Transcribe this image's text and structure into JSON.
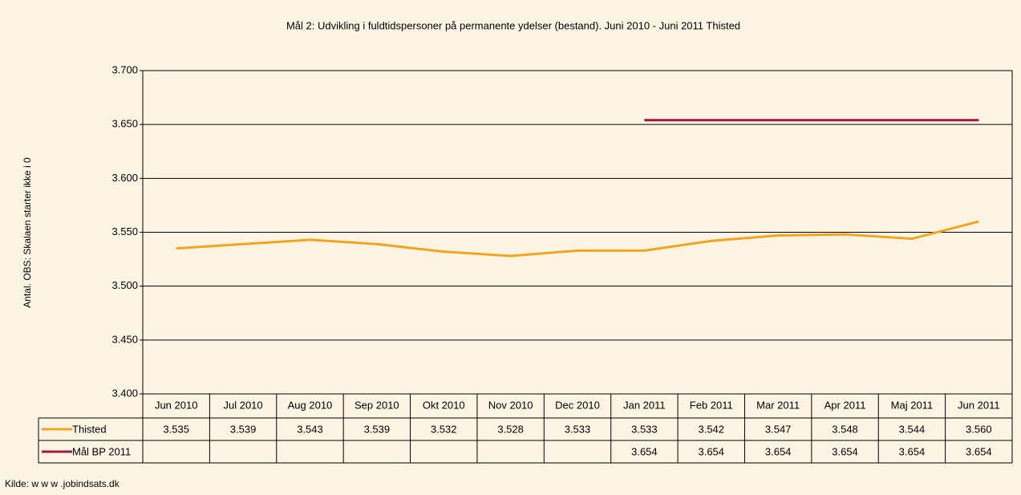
{
  "chart_data": {
    "type": "line",
    "title": "Mål 2: Udvikling i fuldtidspersoner på permanente ydelser (bestand). Juni 2010 - Juni 2011 Thisted",
    "y_label": "Antal. OBS: Skalaen starter ikke i 0",
    "source": "Kilde: w w w .jobindsats.dk",
    "categories": [
      "Jun 2010",
      "Jul 2010",
      "Aug 2010",
      "Sep 2010",
      "Okt 2010",
      "Nov 2010",
      "Dec 2010",
      "Jan 2011",
      "Feb 2011",
      "Mar 2011",
      "Apr 2011",
      "Maj 2011",
      "Jun 2011"
    ],
    "series": [
      {
        "name": "Thisted",
        "color": "#f7a41d",
        "values": [
          3535,
          3539,
          3543,
          3539,
          3532,
          3528,
          3533,
          3533,
          3542,
          3547,
          3548,
          3544,
          3560
        ],
        "value_labels": [
          "3.535",
          "3.539",
          "3.543",
          "3.539",
          "3.532",
          "3.528",
          "3.533",
          "3.533",
          "3.542",
          "3.547",
          "3.548",
          "3.544",
          "3.560"
        ]
      },
      {
        "name": "Mål BP 2011",
        "color": "#a3173e",
        "values": [
          null,
          null,
          null,
          null,
          null,
          null,
          null,
          3654,
          3654,
          3654,
          3654,
          3654,
          3654
        ],
        "value_labels": [
          null,
          null,
          null,
          null,
          null,
          null,
          null,
          "3.654",
          "3.654",
          "3.654",
          "3.654",
          "3.654",
          "3.654"
        ]
      }
    ],
    "ylim": [
      3400,
      3700
    ],
    "yticks": [
      {
        "value": 3400,
        "label": "3.400"
      },
      {
        "value": 3450,
        "label": "3.450"
      },
      {
        "value": 3500,
        "label": "3.500"
      },
      {
        "value": 3550,
        "label": "3.550"
      },
      {
        "value": 3600,
        "label": "3.600"
      },
      {
        "value": 3650,
        "label": "3.650"
      },
      {
        "value": 3700,
        "label": "3.700"
      }
    ],
    "grid": true
  }
}
